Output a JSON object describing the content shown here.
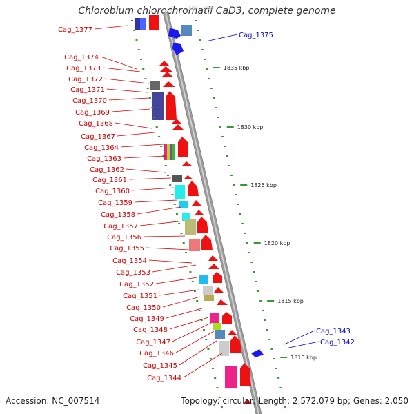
{
  "title": "Chlorobium chlorochromatii CaD3, complete genome",
  "accession_text": "Accession: NC_007514",
  "summary_text": "Topology: circular; Length: 2,572,079 bp; Genes: 2,050",
  "kbp_labels": [
    "1835 kbp",
    "1830 kbp",
    "1825 kbp",
    "1820 kbp",
    "1815 kbp",
    "1810 kbp"
  ],
  "left_genes": [
    "Cag_1377",
    "Cag_1374",
    "Cag_1373",
    "Cag_1372",
    "Cag_1371",
    "Cag_1370",
    "Cag_1369",
    "Cag_1368",
    "Cag_1367",
    "Cag_1364",
    "Cag_1363",
    "Cag_1362",
    "Cag_1361",
    "Cag_1360",
    "Cag_1359",
    "Cag_1358",
    "Cag_1357",
    "Cag_1356",
    "Cag_1355",
    "Cag_1354",
    "Cag_1353",
    "Cag_1352",
    "Cag_1351",
    "Cag_1350",
    "Cag_1349",
    "Cag_1348",
    "Cag_1347",
    "Cag_1346",
    "Cag_1345",
    "Cag_1344"
  ],
  "right_genes": [
    "Cag_1375",
    "Cag_1343",
    "Cag_1342"
  ],
  "colors": {
    "left_label": "#cc0000",
    "right_label": "#0000cc",
    "tick": "#339933",
    "backbone": "#999999"
  }
}
